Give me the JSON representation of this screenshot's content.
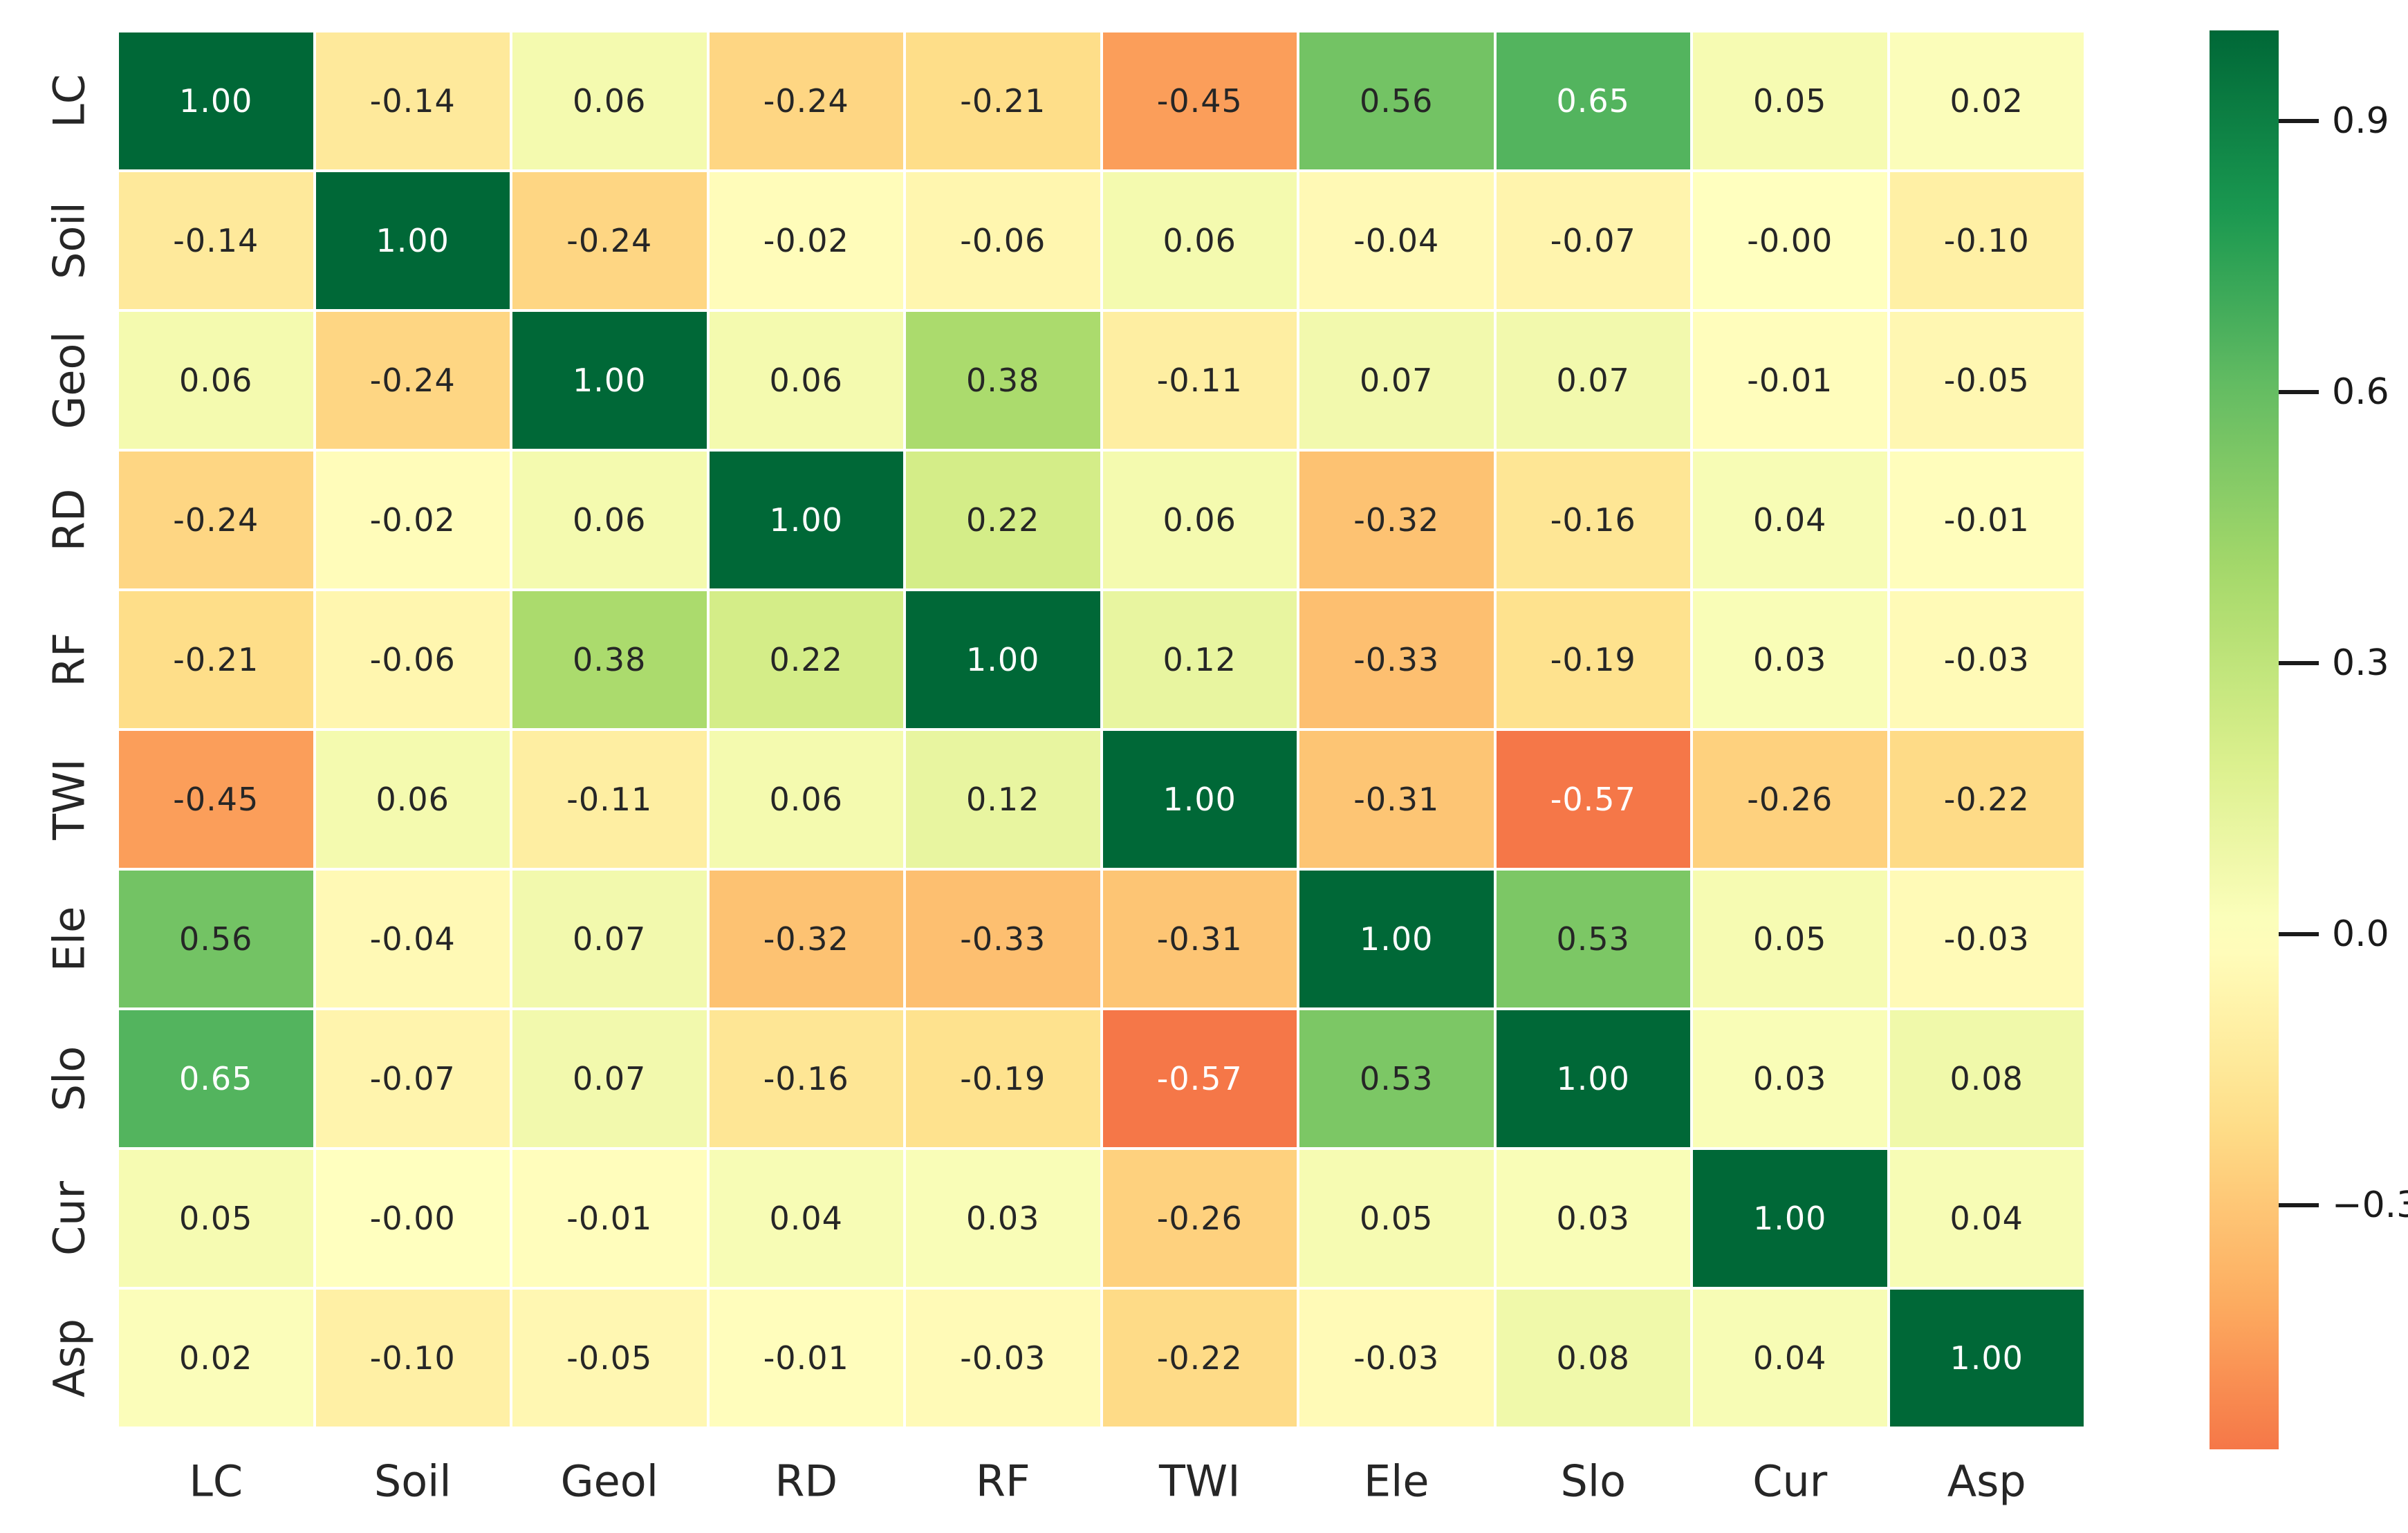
{
  "chart_data": {
    "type": "heatmap",
    "title": "",
    "xlabel": "",
    "ylabel": "",
    "categories": [
      "LC",
      "Soil",
      "Geol",
      "RD",
      "RF",
      "TWI",
      "Ele",
      "Slo",
      "Cur",
      "Asp"
    ],
    "matrix": [
      [
        1.0,
        -0.14,
        0.06,
        -0.24,
        -0.21,
        -0.45,
        0.56,
        0.65,
        0.05,
        0.02
      ],
      [
        -0.14,
        1.0,
        -0.24,
        -0.02,
        -0.06,
        0.06,
        -0.04,
        -0.07,
        -0.0,
        -0.1
      ],
      [
        0.06,
        -0.24,
        1.0,
        0.06,
        0.38,
        -0.11,
        0.07,
        0.07,
        -0.01,
        -0.05
      ],
      [
        -0.24,
        -0.02,
        0.06,
        1.0,
        0.22,
        0.06,
        -0.32,
        -0.16,
        0.04,
        -0.01
      ],
      [
        -0.21,
        -0.06,
        0.38,
        0.22,
        1.0,
        0.12,
        -0.33,
        -0.19,
        0.03,
        -0.03
      ],
      [
        -0.45,
        0.06,
        -0.11,
        0.06,
        0.12,
        1.0,
        -0.31,
        -0.57,
        -0.26,
        -0.22
      ],
      [
        0.56,
        -0.04,
        0.07,
        -0.32,
        -0.33,
        -0.31,
        1.0,
        0.53,
        0.05,
        -0.03
      ],
      [
        0.65,
        -0.07,
        0.07,
        -0.16,
        -0.19,
        -0.57,
        0.53,
        1.0,
        0.03,
        0.08
      ],
      [
        0.05,
        -0.0,
        -0.01,
        0.04,
        0.03,
        -0.26,
        0.05,
        0.03,
        1.0,
        0.04
      ],
      [
        0.02,
        -0.1,
        -0.05,
        -0.01,
        -0.03,
        -0.22,
        -0.03,
        0.08,
        0.04,
        1.0
      ]
    ],
    "cell_labels": [
      [
        "1.00",
        "-0.14",
        "0.06",
        "-0.24",
        "-0.21",
        "-0.45",
        "0.56",
        "0.65",
        "0.05",
        "0.02"
      ],
      [
        "-0.14",
        "1.00",
        "-0.24",
        "-0.02",
        "-0.06",
        "0.06",
        "-0.04",
        "-0.07",
        "-0.00",
        "-0.10"
      ],
      [
        "0.06",
        "-0.24",
        "1.00",
        "0.06",
        "0.38",
        "-0.11",
        "0.07",
        "0.07",
        "-0.01",
        "-0.05"
      ],
      [
        "-0.24",
        "-0.02",
        "0.06",
        "1.00",
        "0.22",
        "0.06",
        "-0.32",
        "-0.16",
        "0.04",
        "-0.01"
      ],
      [
        "-0.21",
        "-0.06",
        "0.38",
        "0.22",
        "1.00",
        "0.12",
        "-0.33",
        "-0.19",
        "0.03",
        "-0.03"
      ],
      [
        "-0.45",
        "0.06",
        "-0.11",
        "0.06",
        "0.12",
        "1.00",
        "-0.31",
        "-0.57",
        "-0.26",
        "-0.22"
      ],
      [
        "0.56",
        "-0.04",
        "0.07",
        "-0.32",
        "-0.33",
        "-0.31",
        "1.00",
        "0.53",
        "0.05",
        "-0.03"
      ],
      [
        "0.65",
        "-0.07",
        "0.07",
        "-0.16",
        "-0.19",
        "-0.57",
        "0.53",
        "1.00",
        "0.03",
        "0.08"
      ],
      [
        "0.05",
        "-0.00",
        "-0.01",
        "0.04",
        "0.03",
        "-0.26",
        "0.05",
        "0.03",
        "1.00",
        "0.04"
      ],
      [
        "0.02",
        "-0.10",
        "-0.05",
        "-0.01",
        "-0.03",
        "-0.22",
        "-0.03",
        "0.08",
        "0.04",
        "1.00"
      ]
    ],
    "colormap": "RdYlGn",
    "colormap_stops": [
      "#a50026",
      "#d73027",
      "#f46d43",
      "#fdae61",
      "#fee08b",
      "#ffffbf",
      "#d9ef8b",
      "#a6d96a",
      "#66bd63",
      "#1a9850",
      "#006837"
    ],
    "color_scale": {
      "map_vmin": -1.0,
      "map_vmax": 1.0
    },
    "colorbar": {
      "position": "right",
      "range_top": 1.0,
      "range_bottom": -0.57,
      "ticks": [
        {
          "label": "0.9",
          "value": 0.9
        },
        {
          "label": "0.6",
          "value": 0.6
        },
        {
          "label": "0.3",
          "value": 0.3
        },
        {
          "label": "0.0",
          "value": 0.0
        },
        {
          "label": "−0.3",
          "value": -0.3
        }
      ]
    },
    "grid": {
      "line_color": "#ffffff"
    },
    "annotation_colors": {
      "on_dark": "#ffffff",
      "on_light": "#262626"
    },
    "legend_position": "none"
  }
}
